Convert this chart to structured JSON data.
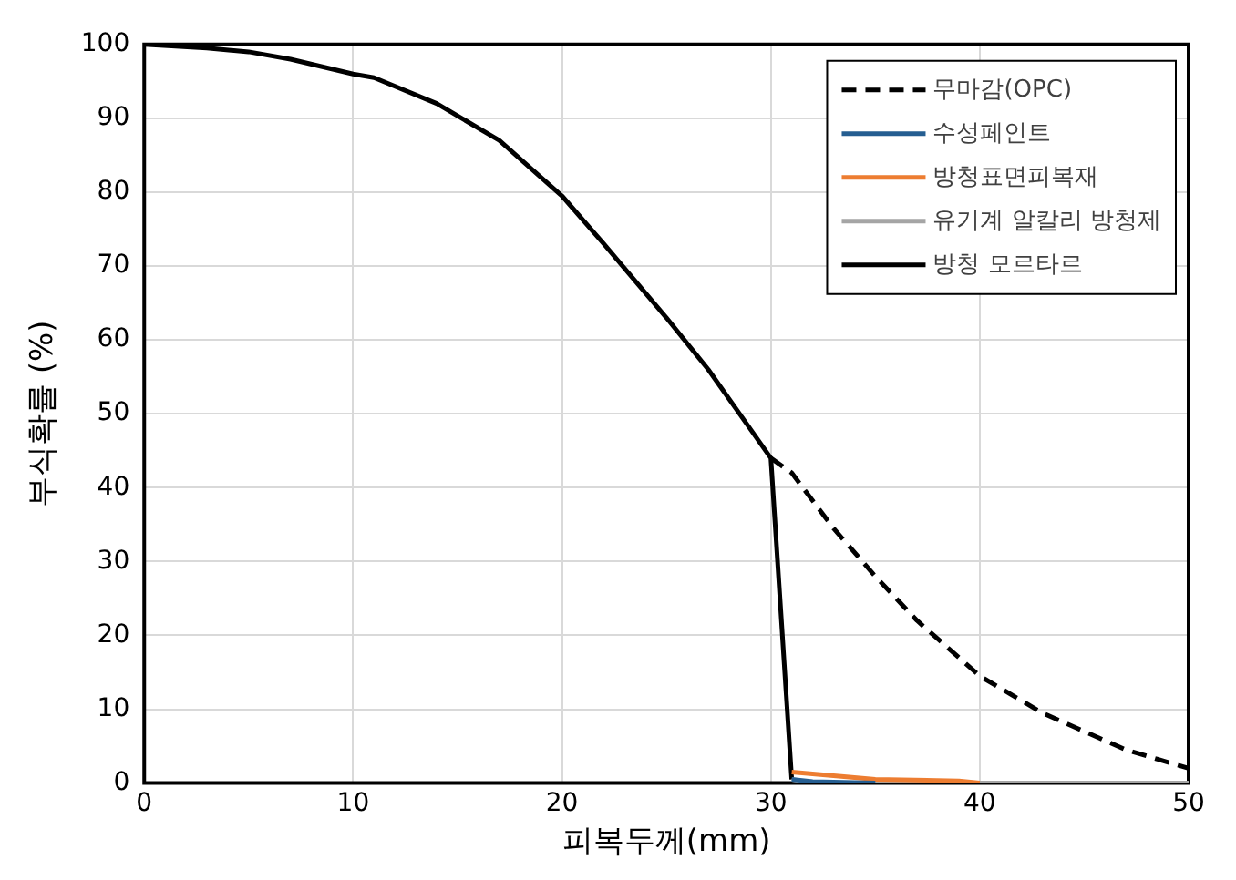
{
  "chart_data": {
    "type": "line",
    "xlabel": "피복두께(mm)",
    "ylabel": "부식확률 (%)",
    "xlim": [
      0,
      50
    ],
    "xticks": [
      0,
      10,
      20,
      30,
      40,
      50
    ],
    "ylim": [
      0,
      100
    ],
    "yticks": [
      0,
      10,
      20,
      30,
      40,
      50,
      60,
      70,
      80,
      90,
      100
    ],
    "grid": true,
    "legend": "top right",
    "marker": "none",
    "series": [
      {
        "name": "무마감(OPC)",
        "color": "#000000",
        "line_style": "dashed",
        "x": [
          30,
          31,
          33,
          35,
          37,
          40,
          43,
          45,
          47,
          50
        ],
        "values": [
          44,
          42,
          34.5,
          28,
          22,
          14.5,
          9.5,
          7,
          4.5,
          2
        ]
      },
      {
        "name": "수성페인트",
        "color": "#255e91",
        "line_style": "solid",
        "x": [
          31,
          32,
          35
        ],
        "values": [
          0.5,
          0.2,
          0
        ]
      },
      {
        "name": "방청표면피복재",
        "color": "#ed7d31",
        "line_style": "solid",
        "x": [
          31,
          33,
          35,
          39,
          40
        ],
        "values": [
          1.5,
          1,
          0.5,
          0.3,
          0
        ]
      },
      {
        "name": "유기계 알칼리 방청제",
        "color": "#a5a5a5",
        "line_style": "solid",
        "x": [
          31,
          32,
          50
        ],
        "values": [
          0.5,
          0,
          0
        ]
      },
      {
        "name": "방청 모르타르",
        "color": "#000000",
        "line_style": "solid",
        "x": [
          0,
          3,
          5,
          7,
          10,
          11,
          14,
          17,
          20,
          22,
          25,
          27,
          29,
          30,
          31
        ],
        "values": [
          100,
          99.5,
          99,
          98,
          96,
          95.5,
          92,
          87,
          79.5,
          73,
          63,
          56,
          48,
          44,
          0.5
        ]
      }
    ]
  }
}
